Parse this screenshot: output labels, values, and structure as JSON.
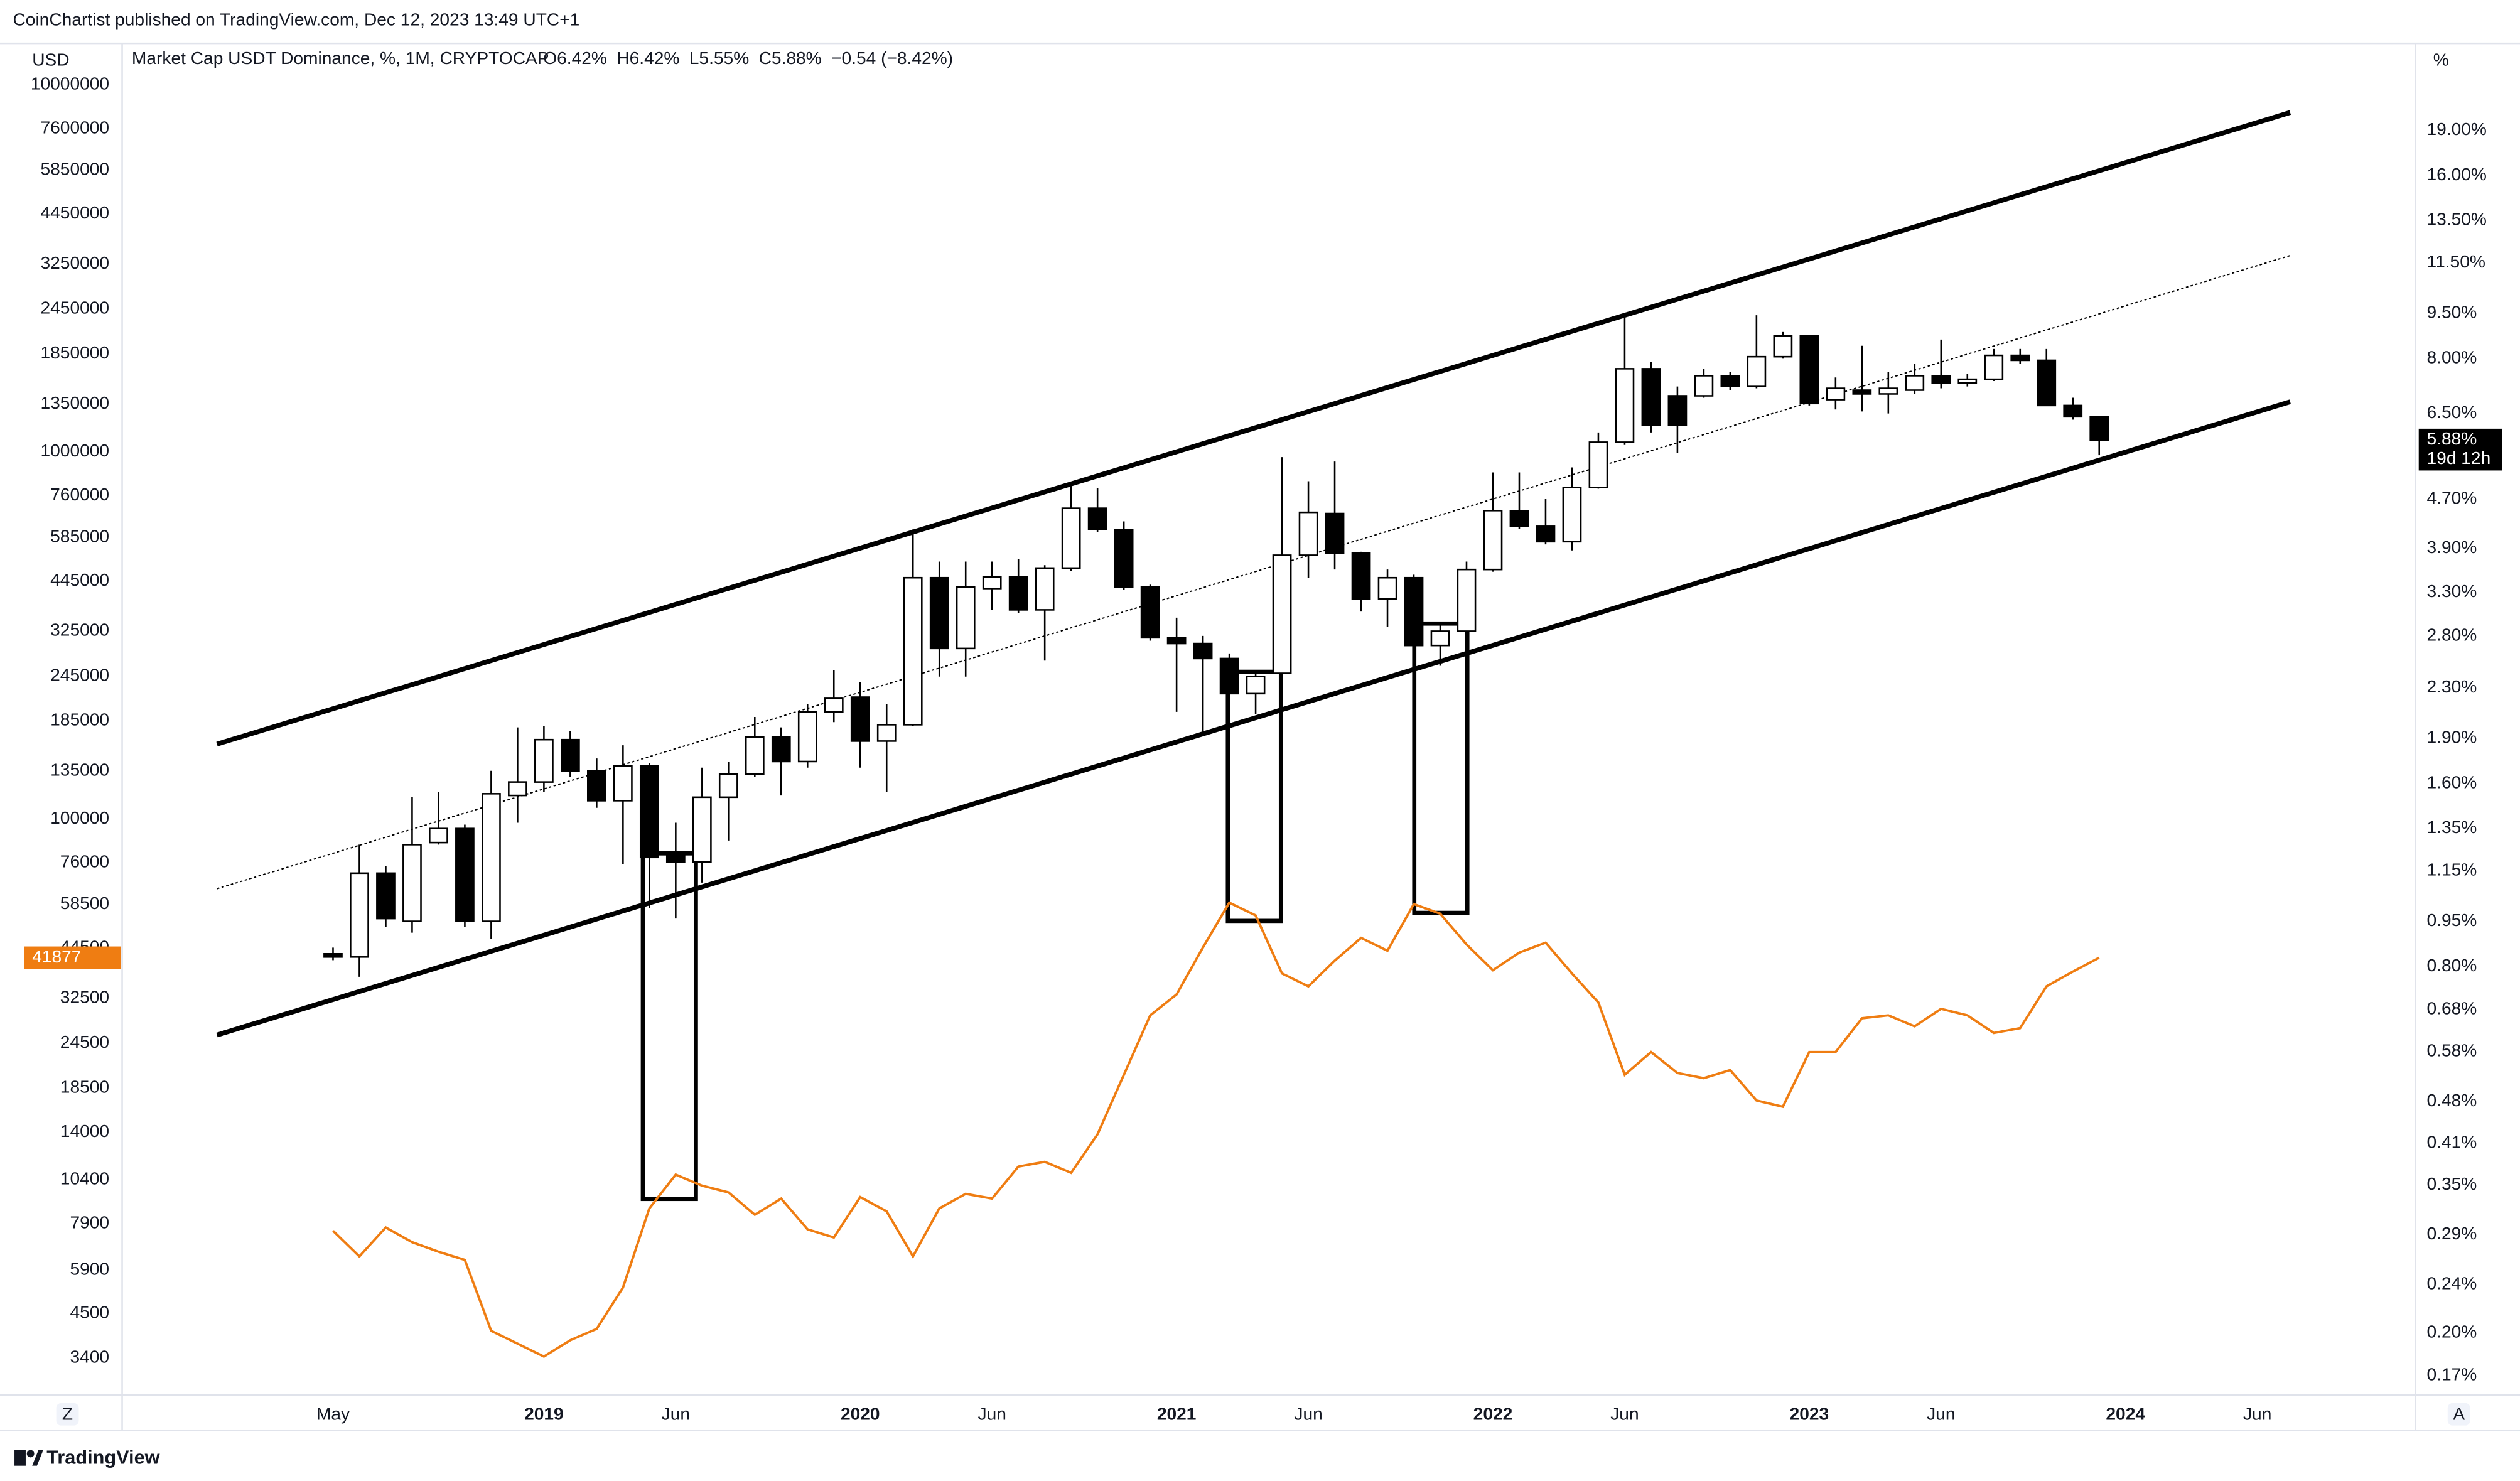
{
  "chart_data": {
    "type": "candlestick",
    "published": "CoinChartist published on TradingView.com, Dec 12, 2023 13:49 UTC+1",
    "title": "Market Cap USDT Dominance, %, 1M, CRYPTOCAP",
    "ohlc_legend": [
      "O6.42%",
      "H6.42%",
      "L5.55%",
      "C5.88%",
      "−0.54 (−8.42%)"
    ],
    "left_axis_label": "USD",
    "right_axis_label": "%",
    "price_tag_label": "5.88%",
    "countdown": "19d 12h",
    "buttons": [
      "Z",
      "A"
    ],
    "brand": "TradingView",
    "x": [
      "2018-05",
      "2018-06",
      "2018-07",
      "2018-08",
      "2018-09",
      "2018-10",
      "2018-11",
      "2018-12",
      "2019-01",
      "2019-02",
      "2019-03",
      "2019-04",
      "2019-05",
      "2019-06",
      "2019-07",
      "2019-08",
      "2019-09",
      "2019-10",
      "2019-11",
      "2019-12",
      "2020-01",
      "2020-02",
      "2020-03",
      "2020-04",
      "2020-05",
      "2020-06",
      "2020-07",
      "2020-08",
      "2020-09",
      "2020-10",
      "2020-11",
      "2020-12",
      "2021-01",
      "2021-02",
      "2021-03",
      "2021-04",
      "2021-05",
      "2021-06",
      "2021-07",
      "2021-08",
      "2021-09",
      "2021-10",
      "2021-11",
      "2021-12",
      "2022-01",
      "2022-02",
      "2022-03",
      "2022-04",
      "2022-05",
      "2022-06",
      "2022-07",
      "2022-08",
      "2022-09",
      "2022-10",
      "2022-11",
      "2022-12",
      "2023-01",
      "2023-02",
      "2023-03",
      "2023-04",
      "2023-05",
      "2023-06",
      "2023-07",
      "2023-08",
      "2023-09",
      "2023-10",
      "2023-11",
      "2023-12"
    ],
    "series": [
      {
        "name": "Market Cap USDT Dominance",
        "type": "candlestick",
        "up_color": "#ffffff",
        "down_color": "#000000",
        "wick_color": "#000000",
        "open": [
          0.84,
          0.83,
          1.14,
          0.95,
          1.28,
          1.35,
          0.95,
          1.53,
          1.61,
          1.89,
          1.68,
          1.5,
          1.71,
          1.23,
          1.19,
          1.52,
          1.66,
          1.91,
          1.74,
          2.1,
          2.22,
          1.88,
          2.0,
          3.49,
          2.67,
          3.35,
          3.5,
          3.09,
          3.62,
          4.54,
          4.19,
          3.37,
          2.78,
          2.72,
          2.57,
          2.25,
          2.43,
          3.8,
          4.45,
          3.83,
          3.22,
          3.49,
          2.7,
          2.85,
          3.6,
          4.5,
          4.24,
          4.0,
          4.91,
          5.83,
          7.7,
          6.95,
          6.95,
          7.5,
          7.2,
          8.06,
          8.72,
          6.85,
          7.1,
          7.0,
          7.1,
          7.5,
          7.3,
          7.4,
          8.1,
          7.95,
          6.7,
          6.42
        ],
        "high": [
          0.86,
          1.27,
          1.17,
          1.52,
          1.55,
          1.37,
          1.68,
          1.98,
          1.99,
          1.95,
          1.76,
          1.85,
          1.73,
          1.38,
          1.7,
          1.74,
          2.06,
          1.98,
          2.16,
          2.46,
          2.35,
          2.16,
          4.19,
          3.71,
          3.71,
          3.71,
          3.75,
          3.66,
          4.97,
          4.9,
          4.32,
          3.4,
          3.0,
          2.8,
          2.62,
          2.46,
          5.51,
          5.03,
          5.42,
          3.85,
          3.6,
          3.53,
          2.94,
          3.71,
          5.2,
          5.2,
          4.7,
          5.3,
          6.05,
          9.43,
          7.9,
          7.2,
          7.7,
          7.6,
          9.43,
          8.85,
          8.75,
          7.45,
          8.4,
          7.6,
          7.85,
          8.6,
          7.55,
          8.3,
          8.3,
          8.3,
          6.9,
          6.42
        ],
        "low": [
          0.82,
          0.77,
          0.93,
          0.91,
          1.27,
          0.93,
          0.89,
          1.38,
          1.55,
          1.64,
          1.46,
          1.18,
          1.0,
          0.96,
          1.1,
          1.29,
          1.64,
          1.53,
          1.7,
          2.02,
          1.7,
          1.55,
          1.99,
          2.4,
          2.4,
          3.09,
          3.05,
          2.55,
          3.58,
          4.15,
          3.33,
          2.75,
          2.1,
          1.92,
          1.99,
          2.08,
          2.4,
          3.49,
          3.6,
          3.07,
          2.9,
          2.68,
          2.5,
          2.82,
          3.57,
          4.2,
          3.96,
          3.87,
          4.89,
          5.77,
          6.05,
          5.6,
          6.9,
          7.1,
          7.15,
          8.0,
          6.7,
          6.6,
          6.55,
          6.5,
          7.0,
          7.15,
          7.2,
          7.35,
          7.85,
          6.7,
          6.35,
          5.55
        ],
        "close": [
          0.83,
          1.14,
          0.96,
          1.27,
          1.35,
          0.95,
          1.54,
          1.61,
          1.89,
          1.68,
          1.5,
          1.71,
          1.21,
          1.19,
          1.52,
          1.66,
          1.91,
          1.74,
          2.1,
          2.21,
          1.88,
          2.0,
          3.49,
          2.67,
          3.37,
          3.5,
          3.09,
          3.62,
          4.54,
          4.19,
          3.37,
          2.78,
          2.72,
          2.57,
          2.25,
          2.4,
          3.8,
          4.47,
          3.83,
          3.22,
          3.49,
          2.7,
          2.85,
          3.6,
          4.5,
          4.24,
          4.0,
          4.91,
          5.83,
          7.7,
          6.22,
          6.22,
          7.5,
          7.2,
          8.06,
          8.72,
          6.75,
          7.15,
          7.0,
          7.15,
          7.5,
          7.3,
          7.4,
          8.1,
          7.95,
          6.7,
          6.42,
          5.88
        ]
      },
      {
        "type": "line",
        "axis": "y2",
        "color": "#ef7d12",
        "values": [
          7550,
          6430,
          7710,
          7030,
          6620,
          6290,
          4030,
          3720,
          3430,
          3800,
          4080,
          5290,
          8690,
          10740,
          10020,
          9610,
          8350,
          9240,
          7620,
          7240,
          9330,
          8530,
          6430,
          8690,
          9520,
          9240,
          11300,
          11640,
          10860,
          13830,
          20090,
          29170,
          33260,
          44650,
          59150,
          54580,
          37930,
          34990,
          41110,
          47420,
          43750,
          58610,
          55200,
          45500,
          38710,
          43250,
          46030,
          37930,
          31620,
          20090,
          23170,
          20320,
          19670,
          20700,
          17100,
          16440,
          23170,
          23170,
          28640,
          29170,
          27230,
          30390,
          29170,
          26120,
          26920,
          34990,
          38370,
          41877
        ]
      }
    ],
    "xlim": [
      "2017-09",
      "2024-12"
    ],
    "xticks": [
      {
        "value": "2018-05",
        "label": "May"
      },
      {
        "value": "2019-01",
        "label": "2019"
      },
      {
        "value": "2019-06",
        "label": "Jun"
      },
      {
        "value": "2020-01",
        "label": "2020"
      },
      {
        "value": "2020-06",
        "label": "Jun"
      },
      {
        "value": "2021-01",
        "label": "2021"
      },
      {
        "value": "2021-06",
        "label": "Jun"
      },
      {
        "value": "2022-01",
        "label": "2022"
      },
      {
        "value": "2022-06",
        "label": "Jun"
      },
      {
        "value": "2023-01",
        "label": "2023"
      },
      {
        "value": "2023-06",
        "label": "Jun"
      },
      {
        "value": "2024-01",
        "label": "2024"
      },
      {
        "value": "2024-06",
        "label": "Jun"
      }
    ],
    "ylim": [
      0.158,
      26.4
    ],
    "log_y": true,
    "yticks": [
      {
        "value": 19,
        "label": "19.00%"
      },
      {
        "value": 16,
        "label": "16.00%"
      },
      {
        "value": 13.5,
        "label": "13.50%"
      },
      {
        "value": 11.5,
        "label": "11.50%"
      },
      {
        "value": 9.5,
        "label": "9.50%"
      },
      {
        "value": 8,
        "label": "8.00%"
      },
      {
        "value": 6.5,
        "label": "6.50%"
      },
      {
        "value": 4.7,
        "label": "4.70%"
      },
      {
        "value": 3.9,
        "label": "3.90%"
      },
      {
        "value": 3.3,
        "label": "3.30%"
      },
      {
        "value": 2.8,
        "label": "2.80%"
      },
      {
        "value": 2.3,
        "label": "2.30%"
      },
      {
        "value": 1.9,
        "label": "1.90%"
      },
      {
        "value": 1.6,
        "label": "1.60%"
      },
      {
        "value": 1.35,
        "label": "1.35%"
      },
      {
        "value": 1.15,
        "label": "1.15%"
      },
      {
        "value": 0.95,
        "label": "0.95%"
      },
      {
        "value": 0.8,
        "label": "0.80%"
      },
      {
        "value": 0.68,
        "label": "0.68%"
      },
      {
        "value": 0.58,
        "label": "0.58%"
      },
      {
        "value": 0.48,
        "label": "0.48%"
      },
      {
        "value": 0.41,
        "label": "0.41%"
      },
      {
        "value": 0.35,
        "label": "0.35%"
      },
      {
        "value": 0.29,
        "label": "0.29%"
      },
      {
        "value": 0.24,
        "label": "0.24%"
      },
      {
        "value": 0.2,
        "label": "0.20%"
      },
      {
        "value": 0.17,
        "label": "0.17%"
      }
    ],
    "y2lim": [
      2695,
      12970000
    ],
    "log_y2": true,
    "y2ticks": [
      10000000,
      7600000,
      5850000,
      4450000,
      3250000,
      2450000,
      1850000,
      1350000,
      1000000,
      760000,
      585000,
      445000,
      325000,
      245000,
      185000,
      135000,
      100000,
      76000,
      58500,
      44500,
      32500,
      24500,
      18500,
      14000,
      10400,
      7900,
      5900,
      4500,
      3400
    ],
    "grid": false
  }
}
